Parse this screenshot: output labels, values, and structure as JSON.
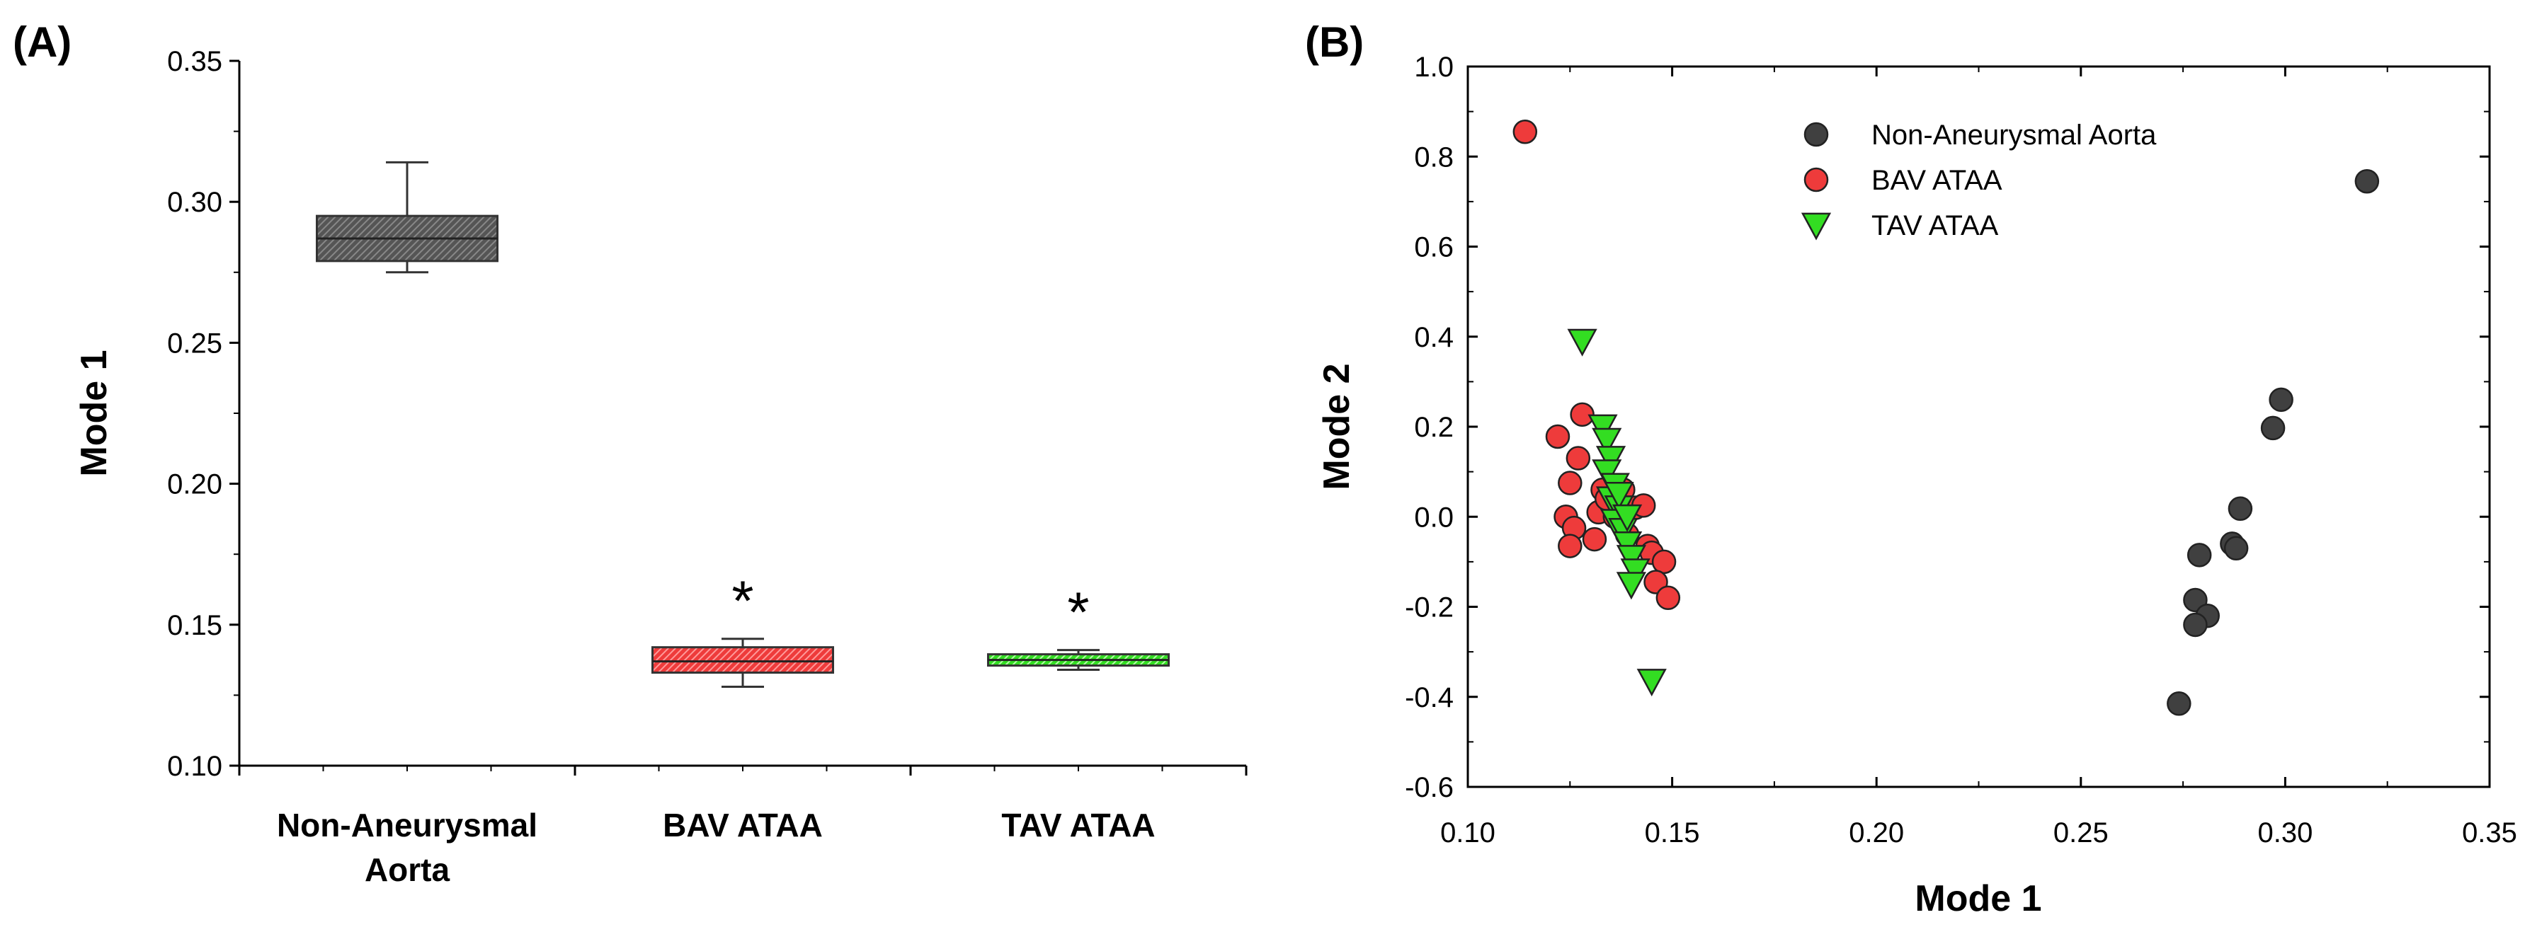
{
  "colors": {
    "non_aneurysmal": "#404040",
    "bav": "#ee3b3b",
    "tav": "#33dd22"
  },
  "chart_data": [
    {
      "panel": "(A)",
      "type": "box",
      "ylabel": "Mode 1",
      "xlabel": "",
      "ylim": [
        0.1,
        0.35
      ],
      "yticks": [
        "0.10",
        "0.15",
        "0.20",
        "0.25",
        "0.30",
        "0.35"
      ],
      "categories": [
        {
          "line1": "Non-Aneurysmal",
          "line2": "Aorta",
          "key": "non_aneurysmal"
        },
        {
          "line1": "BAV ATAA",
          "line2": "",
          "key": "bav"
        },
        {
          "line1": "TAV ATAA",
          "line2": "",
          "key": "tav"
        }
      ],
      "boxes": [
        {
          "min": 0.275,
          "q1": 0.279,
          "median": 0.287,
          "q3": 0.295,
          "max": 0.314,
          "annotation": ""
        },
        {
          "min": 0.128,
          "q1": 0.133,
          "median": 0.137,
          "q3": 0.142,
          "max": 0.145,
          "annotation": "*"
        },
        {
          "min": 0.134,
          "q1": 0.1355,
          "median": 0.1375,
          "q3": 0.1395,
          "max": 0.141,
          "annotation": "*"
        }
      ],
      "grid": false
    },
    {
      "panel": "(B)",
      "type": "scatter",
      "xlabel": "Mode 1",
      "ylabel": "Mode 2",
      "xlim": [
        0.1,
        0.35
      ],
      "ylim": [
        -0.6,
        1.0
      ],
      "xticks": [
        "0.10",
        "0.15",
        "0.20",
        "0.25",
        "0.30",
        "0.35"
      ],
      "yticks": [
        "-0.6",
        "-0.4",
        "-0.2",
        "0.0",
        "0.2",
        "0.4",
        "0.6",
        "0.8",
        "1.0"
      ],
      "legend_position": "top-center",
      "grid": false,
      "series": [
        {
          "name": "Non-Aneurysmal Aorta",
          "key": "non_aneurysmal",
          "marker": "circle",
          "points": [
            [
              0.32,
              0.745
            ],
            [
              0.299,
              0.26
            ],
            [
              0.297,
              0.197
            ],
            [
              0.289,
              0.018
            ],
            [
              0.287,
              -0.06
            ],
            [
              0.288,
              -0.07
            ],
            [
              0.279,
              -0.085
            ],
            [
              0.278,
              -0.185
            ],
            [
              0.281,
              -0.22
            ],
            [
              0.278,
              -0.24
            ],
            [
              0.274,
              -0.415
            ]
          ]
        },
        {
          "name": "BAV ATAA",
          "key": "bav",
          "marker": "circle",
          "points": [
            [
              0.114,
              0.855
            ],
            [
              0.128,
              0.227
            ],
            [
              0.122,
              0.178
            ],
            [
              0.127,
              0.13
            ],
            [
              0.125,
              0.075
            ],
            [
              0.133,
              0.06
            ],
            [
              0.138,
              0.06
            ],
            [
              0.141,
              0.02
            ],
            [
              0.132,
              0.01
            ],
            [
              0.124,
              0.0
            ],
            [
              0.126,
              -0.025
            ],
            [
              0.131,
              -0.05
            ],
            [
              0.125,
              -0.065
            ],
            [
              0.143,
              0.025
            ],
            [
              0.136,
              0.0
            ],
            [
              0.144,
              -0.065
            ],
            [
              0.145,
              -0.08
            ],
            [
              0.148,
              -0.1
            ],
            [
              0.146,
              -0.145
            ],
            [
              0.149,
              -0.18
            ],
            [
              0.139,
              -0.04
            ],
            [
              0.134,
              0.04
            ]
          ]
        },
        {
          "name": "TAV ATAA",
          "key": "tav",
          "marker": "triangle-down",
          "points": [
            [
              0.128,
              0.39
            ],
            [
              0.133,
              0.2
            ],
            [
              0.134,
              0.17
            ],
            [
              0.135,
              0.13
            ],
            [
              0.134,
              0.1
            ],
            [
              0.136,
              0.07
            ],
            [
              0.135,
              0.04
            ],
            [
              0.137,
              0.02
            ],
            [
              0.136,
              -0.01
            ],
            [
              0.138,
              -0.03
            ],
            [
              0.139,
              -0.06
            ],
            [
              0.14,
              -0.09
            ],
            [
              0.141,
              -0.12
            ],
            [
              0.14,
              -0.15
            ],
            [
              0.137,
              0.05
            ],
            [
              0.139,
              0.0
            ],
            [
              0.145,
              -0.365
            ]
          ]
        }
      ]
    }
  ]
}
